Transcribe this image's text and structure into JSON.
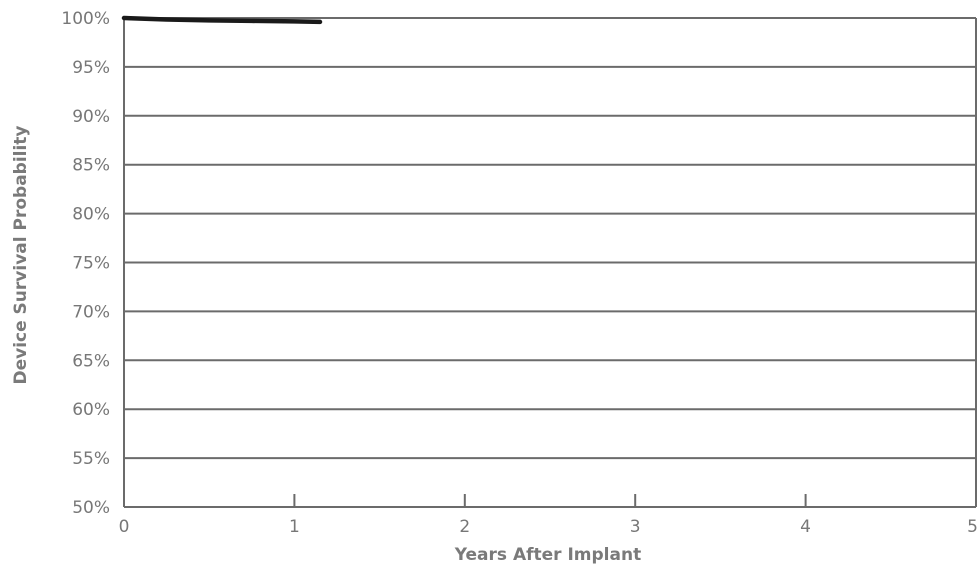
{
  "chart_data": {
    "type": "line",
    "xlabel": "Years After Implant",
    "ylabel": "Device Survival Probability",
    "xlim": [
      0,
      5
    ],
    "ylim": [
      50,
      100
    ],
    "x_ticks": [
      "0",
      "1",
      "2",
      "3",
      "4",
      "5"
    ],
    "y_ticks": [
      "50%",
      "55%",
      "60%",
      "65%",
      "70%",
      "75%",
      "80%",
      "85%",
      "90%",
      "95%",
      "100%"
    ],
    "grid": "horizontal",
    "series": [
      {
        "color": "#1a1a1a",
        "x": [
          0,
          0.25,
          0.5,
          0.75,
          1.0,
          1.15
        ],
        "y": [
          100,
          99.85,
          99.75,
          99.7,
          99.65,
          99.6
        ]
      }
    ]
  }
}
